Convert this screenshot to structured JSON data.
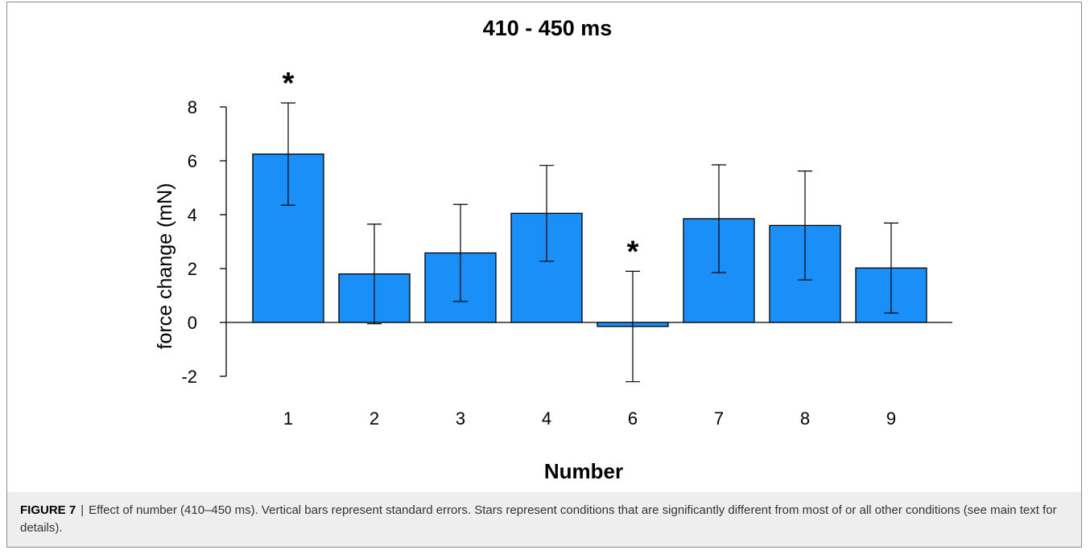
{
  "chart_data": {
    "type": "bar",
    "title": "410 - 450 ms",
    "xlabel": "Number",
    "ylabel": "force change  (mN)",
    "categories": [
      "1",
      "2",
      "3",
      "4",
      "6",
      "7",
      "8",
      "9"
    ],
    "values": [
      6.25,
      1.8,
      2.58,
      4.05,
      -0.15,
      3.85,
      3.6,
      2.02
    ],
    "error": [
      1.9,
      1.85,
      1.8,
      1.78,
      2.05,
      2.0,
      2.02,
      1.67
    ],
    "significant": [
      "1",
      "6"
    ],
    "significance_marker": "*",
    "ylim": [
      -2,
      8
    ],
    "yticks": [
      "-2",
      "0",
      "2",
      "4",
      "6",
      "8"
    ],
    "bar_color": "#1a8ff7",
    "grid": false
  },
  "caption": {
    "label": "FIGURE 7",
    "separator": "|",
    "text": "Effect of number (410–450 ms). Vertical bars represent standard errors. Stars represent conditions that are significantly different from most of or all other conditions (see main text for details)."
  }
}
